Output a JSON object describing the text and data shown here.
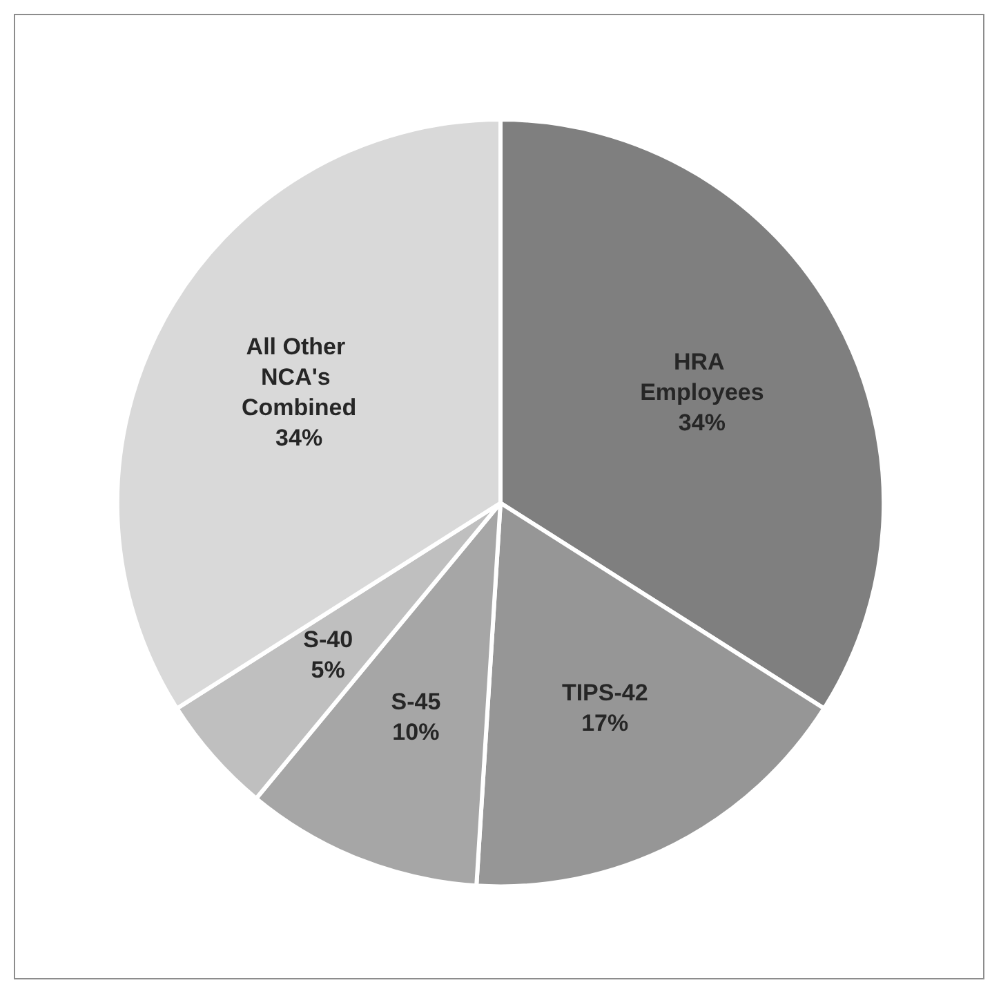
{
  "chart_data": {
    "type": "pie",
    "categories": [
      "HRA Employees",
      "TIPS-42",
      "S-45",
      "S-40",
      "All Other NCA's Combined"
    ],
    "values": [
      34,
      17,
      10,
      5,
      34
    ],
    "colors": [
      "#7f7f7f",
      "#969696",
      "#a6a6a6",
      "#bfbfbf",
      "#d9d9d9"
    ],
    "value_labels": [
      "34%",
      "17%",
      "10%",
      "5%",
      "34%"
    ],
    "legend": false
  }
}
